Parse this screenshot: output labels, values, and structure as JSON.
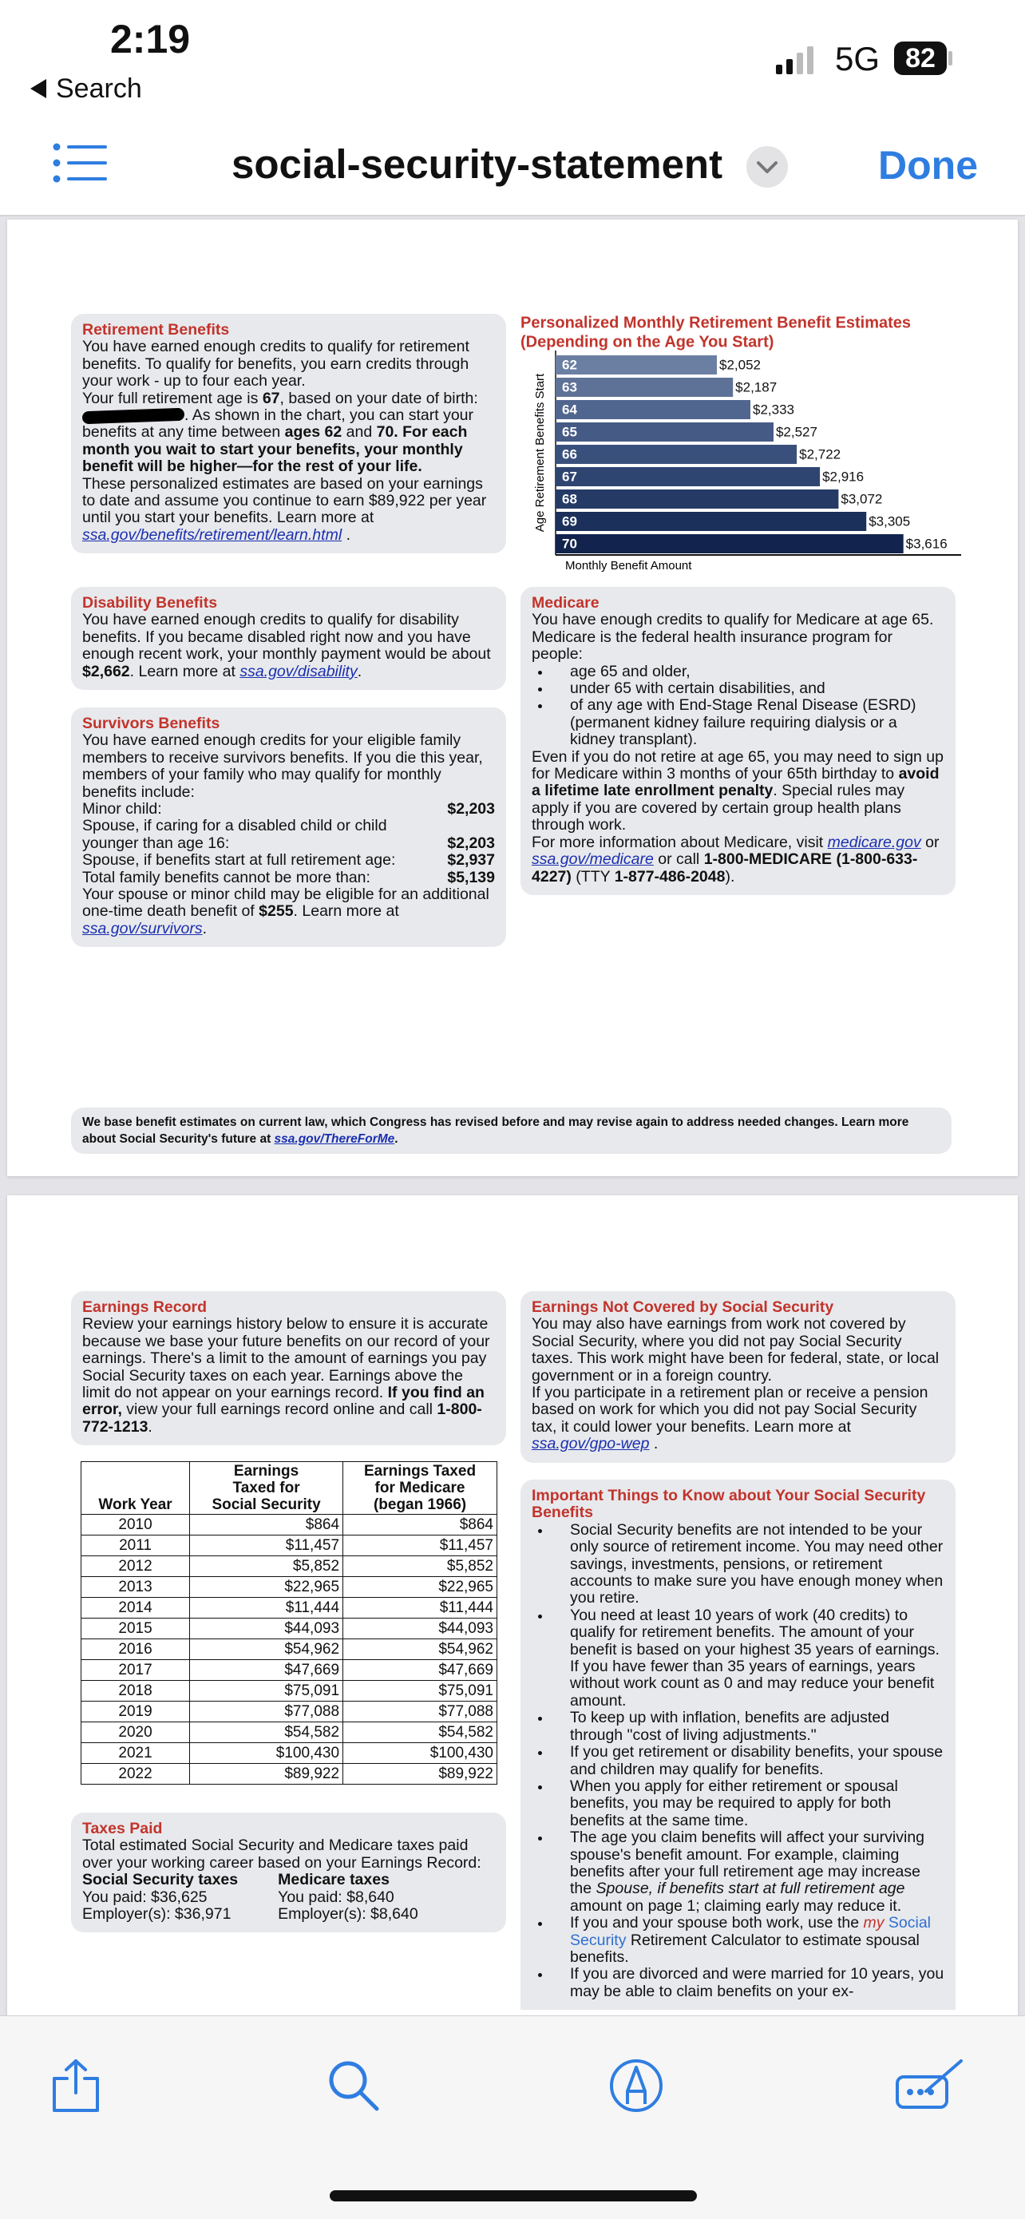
{
  "status": {
    "time": "2:19",
    "back": "Search",
    "network": "5G",
    "battery": "82"
  },
  "toolbar": {
    "title": "social-security-statement",
    "done": "Done"
  },
  "chart_data": {
    "type": "bar",
    "orientation": "horizontal",
    "title": "Personalized Monthly Retirement Benefit Estimates",
    "subtitle": "(Depending on the Age You Start)",
    "y_label": "Age Retirement Benefits Start",
    "x_label": "Monthly Benefit Amount",
    "categories": [
      "62",
      "63",
      "64",
      "65",
      "66",
      "67",
      "68",
      "69",
      "70"
    ],
    "values": [
      2052,
      2187,
      2333,
      2527,
      2722,
      2916,
      3072,
      3305,
      3616
    ],
    "value_labels": [
      "$2,052",
      "$2,187",
      "$2,333",
      "$2,527",
      "$2,722",
      "$2,916",
      "$3,072",
      "$3,305",
      "$3,616"
    ],
    "colors": [
      "#6b7fa3",
      "#5e7298",
      "#51668e",
      "#455a85",
      "#3a507c",
      "#2f4571",
      "#253b66",
      "#1b305a",
      "#12244d"
    ],
    "xlim": [
      700,
      4100
    ]
  },
  "page1": {
    "retirement": {
      "title": "Retirement Benefits",
      "body": [
        [
          "You have earned enough credits to qualify for retirement benefits. To qualify for benefits, you earn credits through your work - up to four each year."
        ],
        [
          "Your full retirement age is ",
          {
            "bold": "67"
          },
          ", based on your date of birth: ",
          {
            "redacted": true
          },
          ". As shown in the chart, you can start your benefits at any time between ",
          {
            "bold": "ages 62"
          },
          " and ",
          {
            "bold": "70. For each month you wait to start your benefits, your monthly benefit will be higher—for the rest of your life."
          }
        ],
        [
          "These personalized estimates are based on your earnings to date and assume you continue to earn $89,922 per year until you start your benefits. Learn more at ",
          {
            "link": "ssa.gov/benefits/retirement/learn.html"
          },
          " ."
        ]
      ]
    },
    "disability": {
      "title": "Disability Benefits",
      "body": [
        [
          "You have earned enough credits to qualify for disability benefits.  If you became disabled right now and you have enough recent work, your monthly payment would be about  ",
          {
            "bold": "$2,662"
          },
          ". Learn more at ",
          {
            "link": "ssa.gov/disability"
          },
          "."
        ]
      ]
    },
    "survivors": {
      "title": "Survivors Benefits",
      "body": [
        "You have earned enough credits for your eligible family members to receive survivors benefits. If you die this year, members of your family who may qualify for monthly benefits include:",
        {
          "rows": [
            [
              "Minor child:",
              "$2,203"
            ],
            [
              "Spouse, if caring for a disabled child or child younger than age 16:",
              "$2,203"
            ],
            [
              "Spouse, if benefits start at full retirement age:",
              "$2,937"
            ],
            [
              "Total family benefits cannot be more than:",
              "$5,139"
            ]
          ]
        },
        [
          "Your spouse or minor child may be eligible for an additional one-time death benefit of ",
          {
            "bold": "$255"
          },
          ". Learn more at ",
          {
            "link": "ssa.gov/survivors"
          },
          "."
        ]
      ]
    },
    "medicare": {
      "title": "Medicare",
      "body": [
        "You have enough credits to qualify for Medicare at age 65.",
        "Medicare is the federal health insurance program for people:",
        {
          "bullets": [
            "age 65 and older,",
            "under 65 with certain disabilities, and",
            "of any age with End-Stage Renal Disease (ESRD) (permanent kidney failure requiring dialysis or a kidney transplant)."
          ]
        },
        [
          "Even if you do not retire at age 65, you may need to sign up for Medicare within 3 months of your 65th birthday to ",
          {
            "bold": "avoid a lifetime late enrollment penalty"
          },
          ". Special rules may apply if you are covered by certain group health plans through work."
        ],
        [
          "For more information about Medicare, visit ",
          {
            "link": "medicare.gov"
          },
          "  or ",
          {
            "link": "ssa.gov/medicare"
          },
          " or call ",
          {
            "bold": "1-800-MEDICARE (1-800-633-4227)"
          },
          " (TTY ",
          {
            "bold": "1-877-486-2048"
          },
          ")."
        ]
      ]
    },
    "footer": {
      "body": [
        [
          "We base benefit estimates on current law, which Congress has revised before and may revise again to address needed changes.  Learn more about Social Security's future at  ",
          {
            "link": "ssa.gov/ThereForMe"
          },
          "."
        ]
      ]
    }
  },
  "page2": {
    "earnings_record": {
      "title": "Earnings Record",
      "body": [
        [
          "Review your earnings history below to ensure it is accurate because we base your future benefits on our record of your earnings. There's a limit to the amount of earnings you pay Social Security taxes on each year. Earnings above the limit do not appear on your earnings record. ",
          {
            "bold": "If you find an error,"
          },
          " view your full earnings record online and call ",
          {
            "bold": "1-800-772-1213"
          },
          "."
        ]
      ]
    },
    "table": {
      "header": [
        [
          "Work Year"
        ],
        [
          "Earnings",
          "Taxed for",
          "Social Security"
        ],
        [
          "Earnings Taxed",
          "for Medicare",
          "(began 1966)"
        ]
      ],
      "rows": [
        [
          "2010",
          "$864",
          "$864"
        ],
        [
          "2011",
          "$11,457",
          "$11,457"
        ],
        [
          "2012",
          "$5,852",
          "$5,852"
        ],
        [
          "2013",
          "$22,965",
          "$22,965"
        ],
        [
          "2014",
          "$11,444",
          "$11,444"
        ],
        [
          "2015",
          "$44,093",
          "$44,093"
        ],
        [
          "2016",
          "$54,962",
          "$54,962"
        ],
        [
          "2017",
          "$47,669",
          "$47,669"
        ],
        [
          "2018",
          "$75,091",
          "$75,091"
        ],
        [
          "2019",
          "$77,088",
          "$77,088"
        ],
        [
          "2020",
          "$54,582",
          "$54,582"
        ],
        [
          "2021",
          "$100,430",
          "$100,430"
        ],
        [
          "2022",
          "$89,922",
          "$89,922"
        ]
      ]
    },
    "taxes_paid": {
      "title": "Taxes Paid",
      "body": [
        "Total estimated Social Security and Medicare taxes paid over your working career based on your Earnings Record:",
        {
          "columns": [
            {
              "head": "Social Security taxes",
              "lines": [
                "You paid: $36,625",
                "Employer(s): $36,971"
              ]
            },
            {
              "head": "Medicare taxes",
              "lines": [
                "You paid: $8,640",
                "Employer(s):  $8,640"
              ]
            }
          ]
        }
      ]
    },
    "not_covered": {
      "title": "Earnings Not Covered by Social Security",
      "body": [
        "You may also have earnings from work not covered by Social Security, where you did not pay Social Security taxes. This work might have been for federal, state, or local government or in a foreign country.",
        [
          "If you participate in a retirement plan or receive a pension based on work for which you did not pay Social Security tax, it could lower your benefits. Learn more at ",
          {
            "link": "ssa.gov/gpo-wep"
          },
          " ."
        ]
      ]
    },
    "important": {
      "title": "Important Things to Know about Your Social Security Benefits",
      "body": [
        {
          "bullets": [
            "Social Security benefits are not intended to be your only source of retirement income. You may need other savings, investments, pensions, or retirement accounts to make sure you have enough money when you retire.",
            "You need at least 10 years of work (40 credits) to qualify for retirement benefits. The amount of your benefit is based on your highest 35 years of earnings. If you have fewer than 35 years of earnings, years without work count as 0 and may reduce your benefit amount.",
            "To keep up with inflation, benefits are adjusted through \"cost of living adjustments.\"",
            "If you get retirement or disability benefits, your spouse and children may qualify for benefits.",
            "When you apply for either retirement or spousal benefits, you may be required to apply for both benefits at the same time.",
            [
              "The age you claim benefits will affect your surviving spouse's benefit amount. For example, claiming benefits after your full retirement age may increase the ",
              {
                "italic": "Spouse, if benefits start at full retirement age"
              },
              " amount on page 1; claiming early may reduce it."
            ],
            [
              "If you and your spouse both work, use the ",
              {
                "red_italic": "my"
              },
              " ",
              {
                "brand": "Social Security"
              },
              " Retirement Calculator to estimate spousal benefits."
            ],
            "If you are divorced and were married for 10 years, you may be able to claim benefits on your ex-"
          ]
        }
      ]
    }
  }
}
